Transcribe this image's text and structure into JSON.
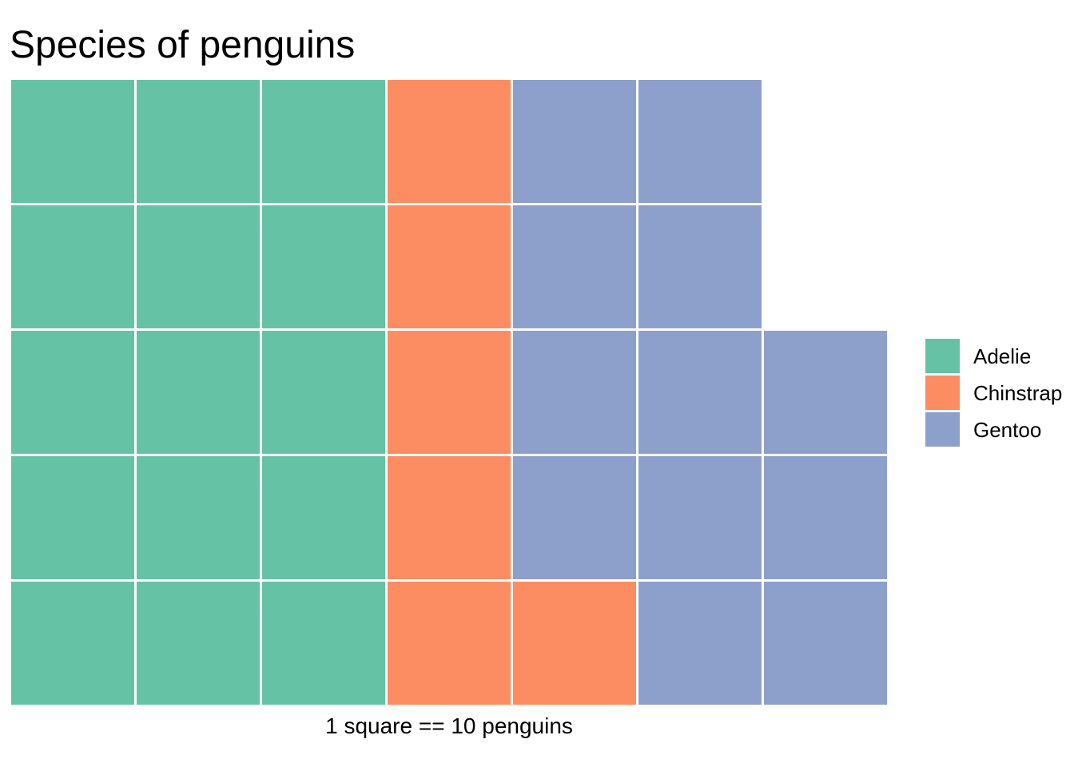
{
  "chart_data": {
    "type": "waffle",
    "title": "Species of penguins",
    "caption": "1 square == 10 penguins",
    "value_per_square": 10,
    "grid": {
      "rows": 5,
      "columns": 7,
      "total_squares": 33
    },
    "fill_order": "column-wise, bottom to top, left to right",
    "series": [
      {
        "name": "Adelie",
        "squares": 15,
        "color": "#66C2A5"
      },
      {
        "name": "Chinstrap",
        "squares": 6,
        "color": "#FC8D62"
      },
      {
        "name": "Gentoo",
        "squares": 12,
        "color": "#8DA0CB"
      }
    ],
    "grid_rows_top_to_bottom": [
      [
        "Adelie",
        "Adelie",
        "Adelie",
        "Chinstrap",
        "Gentoo",
        "Gentoo",
        null
      ],
      [
        "Adelie",
        "Adelie",
        "Adelie",
        "Chinstrap",
        "Gentoo",
        "Gentoo",
        null
      ],
      [
        "Adelie",
        "Adelie",
        "Adelie",
        "Chinstrap",
        "Gentoo",
        "Gentoo",
        "Gentoo"
      ],
      [
        "Adelie",
        "Adelie",
        "Adelie",
        "Chinstrap",
        "Gentoo",
        "Gentoo",
        "Gentoo"
      ],
      [
        "Adelie",
        "Adelie",
        "Adelie",
        "Chinstrap",
        "Chinstrap",
        "Gentoo",
        "Gentoo"
      ]
    ],
    "legend": {
      "position": "right",
      "entries": [
        "Adelie",
        "Chinstrap",
        "Gentoo"
      ]
    },
    "layout_hints": {
      "background": "#FFFFFF",
      "gridlines": "none",
      "square_gap_color": "#FFFFFF"
    }
  }
}
